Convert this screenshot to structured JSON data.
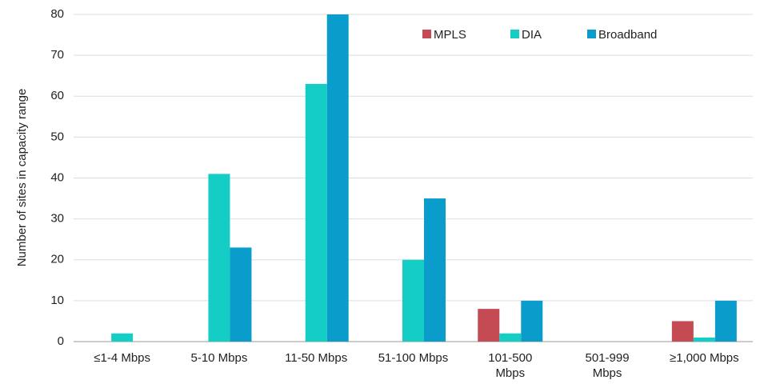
{
  "chart_data": {
    "type": "bar",
    "y_label": "Number of sites in capacity range",
    "categories": [
      "≤1-4 Mbps",
      "5-10 Mbps",
      "11-50 Mbps",
      "51-100 Mbps",
      "101-500\nMbps",
      "501-999\nMbps",
      "≥1,000 Mbps"
    ],
    "series": [
      {
        "name": "MPLS",
        "color": "#c44b53",
        "values": [
          0,
          0,
          0,
          0,
          8,
          0,
          5
        ]
      },
      {
        "name": "DIA",
        "color": "#14cec6",
        "values": [
          2,
          41,
          63,
          20,
          2,
          0,
          1
        ]
      },
      {
        "name": "Broadband",
        "color": "#0a9dcb",
        "values": [
          0,
          23,
          80,
          35,
          10,
          0,
          10
        ]
      }
    ],
    "ylim": [
      0,
      80
    ],
    "yticks": [
      0,
      10,
      20,
      30,
      40,
      50,
      60,
      70,
      80
    ],
    "grid": true
  }
}
